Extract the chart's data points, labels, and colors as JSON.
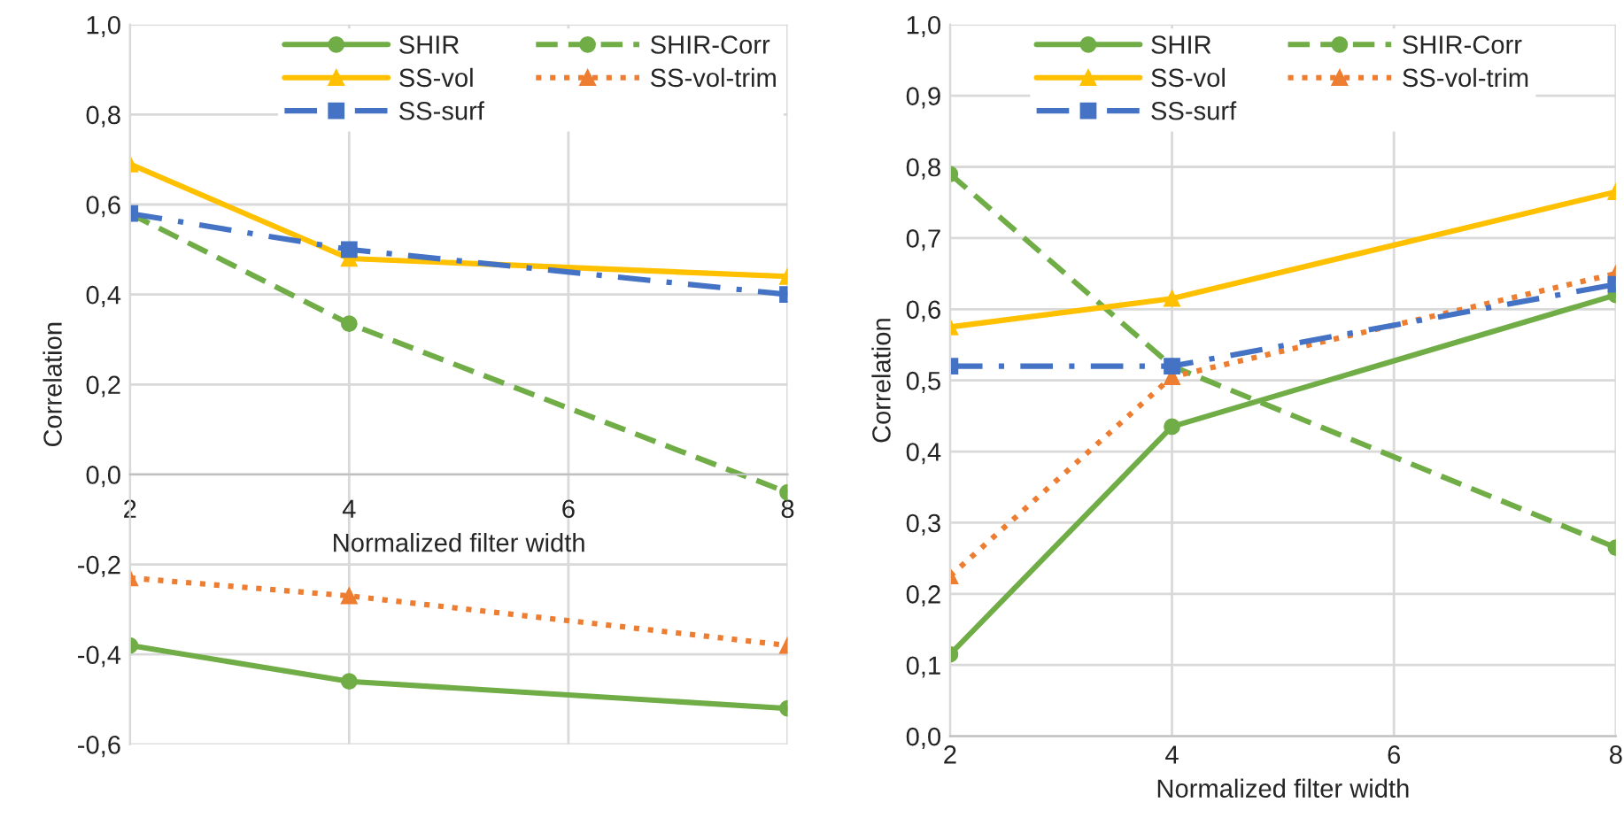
{
  "chart_data": [
    {
      "type": "line",
      "xlabel": "Normalized filter width",
      "ylabel": "Correlation",
      "x": [
        2,
        4,
        8
      ],
      "xlim": [
        2,
        8
      ],
      "xticks": [
        2,
        4,
        6,
        8
      ],
      "ylim": [
        -0.6,
        1.0
      ],
      "yticks": [
        {
          "value": -0.6,
          "label": "-0,6"
        },
        {
          "value": -0.4,
          "label": "-0,4"
        },
        {
          "value": -0.2,
          "label": "-0,2"
        },
        {
          "value": 0.0,
          "label": "0,0"
        },
        {
          "value": 0.2,
          "label": "0,2"
        },
        {
          "value": 0.4,
          "label": "0,4"
        },
        {
          "value": 0.6,
          "label": "0,6"
        },
        {
          "value": 0.8,
          "label": "0,8"
        },
        {
          "value": 1.0,
          "label": "1,0"
        }
      ],
      "grid": true,
      "legend": "top right",
      "series": [
        {
          "name": "SHIR",
          "color": "#70ad47",
          "values": [
            -0.38,
            -0.46,
            -0.52
          ],
          "marker": "circle",
          "line_style": "solid"
        },
        {
          "name": "SHIR-Corr",
          "color": "#70ad47",
          "values": [
            0.58,
            0.335,
            -0.04
          ],
          "marker": "circle",
          "line_style": "dashed"
        },
        {
          "name": "SS-vol",
          "color": "#ffc000",
          "values": [
            0.69,
            0.48,
            0.44
          ],
          "marker": "triangle",
          "line_style": "solid"
        },
        {
          "name": "SS-vol-trim",
          "color": "#ed7d31",
          "values": [
            -0.23,
            -0.27,
            -0.38
          ],
          "marker": "triangle",
          "line_style": "dotted"
        },
        {
          "name": "SS-surf",
          "color": "#4472c4",
          "values": [
            0.58,
            0.5,
            0.4
          ],
          "marker": "square",
          "line_style": "dashdot"
        }
      ]
    },
    {
      "type": "line",
      "xlabel": "Normalized filter width",
      "ylabel": "Correlation",
      "x": [
        2,
        4,
        8
      ],
      "xlim": [
        2,
        8
      ],
      "xticks": [
        2,
        4,
        6,
        8
      ],
      "ylim": [
        0.0,
        1.0
      ],
      "yticks": [
        {
          "value": 0.0,
          "label": "0,0"
        },
        {
          "value": 0.1,
          "label": "0,1"
        },
        {
          "value": 0.2,
          "label": "0,2"
        },
        {
          "value": 0.3,
          "label": "0,3"
        },
        {
          "value": 0.4,
          "label": "0,4"
        },
        {
          "value": 0.5,
          "label": "0,5"
        },
        {
          "value": 0.6,
          "label": "0,6"
        },
        {
          "value": 0.7,
          "label": "0,7"
        },
        {
          "value": 0.8,
          "label": "0,8"
        },
        {
          "value": 0.9,
          "label": "0,9"
        },
        {
          "value": 1.0,
          "label": "1,0"
        }
      ],
      "grid": true,
      "legend": "top",
      "series": [
        {
          "name": "SHIR",
          "color": "#70ad47",
          "values": [
            0.115,
            0.435,
            0.62
          ],
          "marker": "circle",
          "line_style": "solid"
        },
        {
          "name": "SHIR-Corr",
          "color": "#70ad47",
          "values": [
            0.79,
            0.52,
            0.265
          ],
          "marker": "circle",
          "line_style": "dashed"
        },
        {
          "name": "SS-vol",
          "color": "#ffc000",
          "values": [
            0.575,
            0.615,
            0.765
          ],
          "marker": "triangle",
          "line_style": "solid"
        },
        {
          "name": "SS-vol-trim",
          "color": "#ed7d31",
          "values": [
            0.225,
            0.505,
            0.65
          ],
          "marker": "triangle",
          "line_style": "dotted"
        },
        {
          "name": "SS-surf",
          "color": "#4472c4",
          "values": [
            0.52,
            0.52,
            0.635
          ],
          "marker": "square",
          "line_style": "dashdot"
        }
      ]
    }
  ]
}
